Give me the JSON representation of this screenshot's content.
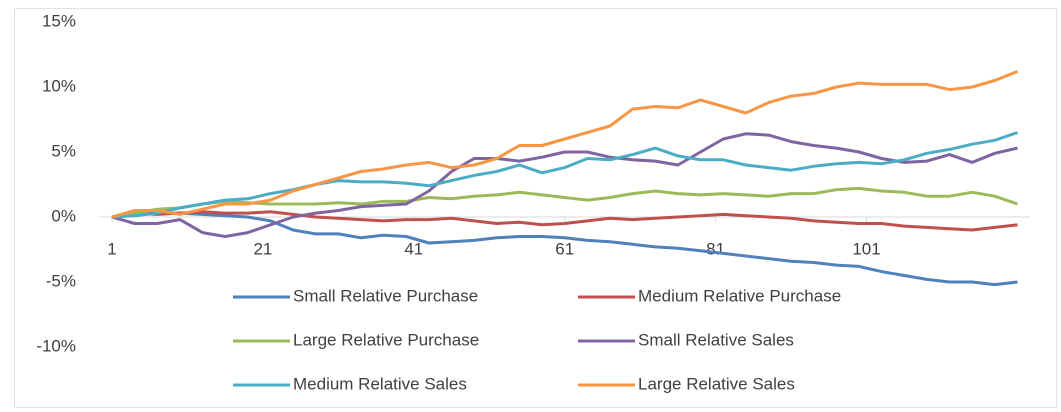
{
  "chart_data": {
    "type": "line",
    "x": [
      1,
      4,
      7,
      10,
      13,
      16,
      19,
      22,
      25,
      28,
      31,
      34,
      37,
      40,
      43,
      46,
      49,
      52,
      55,
      58,
      61,
      64,
      67,
      70,
      73,
      76,
      79,
      82,
      85,
      88,
      91,
      94,
      97,
      100,
      103,
      106,
      109,
      112,
      115,
      118,
      121
    ],
    "xlim": [
      1,
      122
    ],
    "xticks": [
      1,
      21,
      41,
      61,
      81,
      101
    ],
    "ylim": [
      -10,
      15
    ],
    "yticks": [
      {
        "value": -10,
        "label": "-10%"
      },
      {
        "value": -5,
        "label": "-5%"
      },
      {
        "value": 0,
        "label": "0%"
      },
      {
        "value": 5,
        "label": "5%"
      },
      {
        "value": 10,
        "label": "10%"
      },
      {
        "value": 15,
        "label": "15%"
      }
    ],
    "legend": "bottom",
    "series": [
      {
        "name": "Small Relative Purchase",
        "color": "#4f81bd",
        "values": [
          0,
          0.2,
          0.3,
          0.3,
          0.2,
          0.1,
          0,
          -0.3,
          -1,
          -1.3,
          -1.3,
          -1.6,
          -1.4,
          -1.5,
          -2,
          -1.9,
          -1.8,
          -1.6,
          -1.5,
          -1.5,
          -1.6,
          -1.8,
          -1.9,
          -2.1,
          -2.3,
          -2.4,
          -2.6,
          -2.8,
          -3.0,
          -3.2,
          -3.4,
          -3.5,
          -3.7,
          -3.8,
          -4.2,
          -4.5,
          -4.8,
          -5.0,
          -5.0,
          -5.2,
          -5.0
        ]
      },
      {
        "name": "Medium Relative Purchase",
        "color": "#c0504d",
        "values": [
          0,
          0.3,
          0.2,
          0.3,
          0.4,
          0.3,
          0.3,
          0.4,
          0.2,
          0,
          -0.1,
          -0.2,
          -0.3,
          -0.2,
          -0.2,
          -0.1,
          -0.3,
          -0.5,
          -0.4,
          -0.6,
          -0.5,
          -0.3,
          -0.1,
          -0.2,
          -0.1,
          0,
          0.1,
          0.2,
          0.1,
          0,
          -0.1,
          -0.3,
          -0.4,
          -0.5,
          -0.5,
          -0.7,
          -0.8,
          -0.9,
          -1.0,
          -0.8,
          -0.6
        ]
      },
      {
        "name": "Large Relative Purchase",
        "color": "#9bbb59",
        "values": [
          0,
          0.3,
          0.6,
          0.7,
          1.0,
          1.2,
          1.1,
          1.0,
          1.0,
          1.0,
          1.1,
          1.0,
          1.2,
          1.2,
          1.5,
          1.4,
          1.6,
          1.7,
          1.9,
          1.7,
          1.5,
          1.3,
          1.5,
          1.8,
          2.0,
          1.8,
          1.7,
          1.8,
          1.7,
          1.6,
          1.8,
          1.8,
          2.1,
          2.2,
          2.0,
          1.9,
          1.6,
          1.6,
          1.9,
          1.6,
          1.0
        ]
      },
      {
        "name": "Small Relative Sales",
        "color": "#8064a2",
        "values": [
          0,
          -0.5,
          -0.5,
          -0.2,
          -1.2,
          -1.5,
          -1.2,
          -0.6,
          0,
          0.3,
          0.5,
          0.8,
          0.9,
          1.0,
          2.0,
          3.5,
          4.5,
          4.5,
          4.3,
          4.6,
          5.0,
          5.0,
          4.6,
          4.4,
          4.3,
          4.0,
          5.0,
          6.0,
          6.4,
          6.3,
          5.8,
          5.5,
          5.3,
          5.0,
          4.5,
          4.2,
          4.3,
          4.8,
          4.2,
          4.9,
          5.3
        ]
      },
      {
        "name": "Medium Relative Sales",
        "color": "#4bacc6",
        "values": [
          0,
          0.1,
          0.3,
          0.7,
          1.0,
          1.3,
          1.4,
          1.8,
          2.1,
          2.5,
          2.8,
          2.7,
          2.7,
          2.6,
          2.4,
          2.8,
          3.2,
          3.5,
          4.0,
          3.4,
          3.8,
          4.5,
          4.4,
          4.8,
          5.3,
          4.7,
          4.4,
          4.4,
          4.0,
          3.8,
          3.6,
          3.9,
          4.1,
          4.2,
          4.1,
          4.4,
          4.9,
          5.2,
          5.6,
          5.9,
          6.5
        ]
      },
      {
        "name": "Large Relative Sales",
        "color": "#f79646",
        "values": [
          0,
          0.5,
          0.5,
          0.2,
          0.6,
          1.0,
          1.0,
          1.3,
          2.0,
          2.5,
          3.0,
          3.5,
          3.7,
          4.0,
          4.2,
          3.8,
          4.0,
          4.5,
          5.5,
          5.5,
          6.0,
          6.5,
          7.0,
          8.3,
          8.5,
          8.4,
          9.0,
          8.5,
          8.0,
          8.8,
          9.3,
          9.5,
          10.0,
          10.3,
          10.2,
          10.2,
          10.2,
          9.8,
          10.0,
          10.5,
          11.2
        ]
      }
    ]
  }
}
